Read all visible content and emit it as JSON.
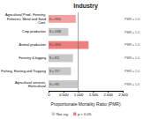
{
  "chart_data": {
    "type": "bar",
    "orientation": "horizontal",
    "title": "Industry",
    "xlabel": "Proportionate Mortality Ratio (PMR)",
    "categories": [
      "Agricultural Prod., Forestry, Fisheries, Metal and Sand Cont.",
      "Crop production",
      "Animal production",
      "Forestry & logging",
      "Fishing, Hunting and Trapping",
      "Agricultural services, Horticultural"
    ],
    "values": [
      0.916,
      0.668,
      1.35,
      0.821,
      0.757,
      0.981
    ],
    "colors": [
      "#f4a0a0",
      "#c8c8c8",
      "#f08080",
      "#c8c8c8",
      "#c8c8c8",
      "#c8c8c8"
    ],
    "bar_labels": [
      "N = 9856",
      "N = 5488",
      "N = 4900",
      "N = 821",
      "N = 757",
      "N = 981"
    ],
    "pmr_labels": [
      "PMR = 1.0",
      "PMR = 1.0",
      "PMR = 1.0",
      "PMR = 1.0",
      "PMR = 1.0",
      "PMR = 1.0"
    ],
    "reference_line": 1.0,
    "xlim": [
      0,
      2.5
    ],
    "xticks": [
      0,
      {
        "value": 0.5,
        "label": "0.500"
      },
      {
        "value": 1.0,
        "label": "1.000"
      },
      {
        "value": 1.5,
        "label": "1.500"
      },
      {
        "value": 2.0,
        "label": "2.000"
      },
      {
        "value": 2.5,
        "label": "2.500"
      }
    ],
    "legend": "bottom",
    "legend_entries": [
      {
        "name": "Not sig.",
        "color": "#c8c8c8"
      },
      {
        "name": "p < 0.05",
        "color": "#f08080"
      }
    ],
    "grid": false
  }
}
